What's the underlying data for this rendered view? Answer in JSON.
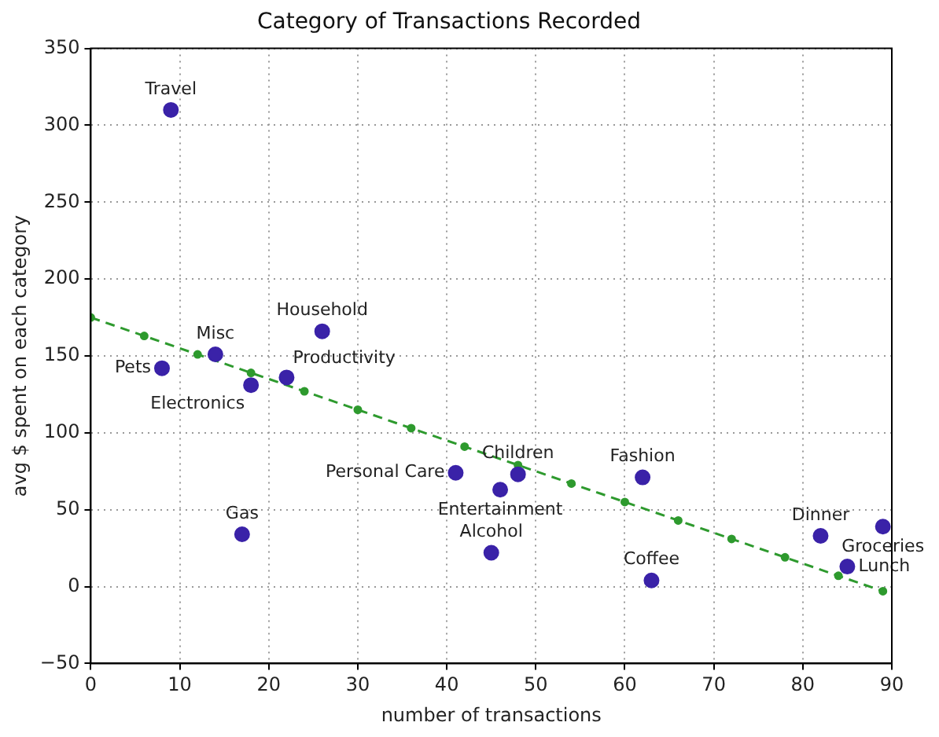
{
  "chart_data": {
    "type": "scatter",
    "title": "Category of Transactions Recorded",
    "xlabel": "number of transactions",
    "ylabel": "avg $ spent on each category",
    "xlim": [
      0,
      90
    ],
    "xticks": [
      0,
      10,
      20,
      30,
      40,
      50,
      60,
      70,
      80,
      90
    ],
    "ylim": [
      -50,
      350
    ],
    "yticks": [
      -50,
      0,
      50,
      100,
      150,
      200,
      250,
      300,
      350
    ],
    "grid": true,
    "marker": "circle",
    "series": [
      {
        "color": "#3a22a8",
        "x": [
          9,
          8,
          14,
          18,
          22,
          26,
          41,
          46,
          48,
          45,
          62,
          63,
          17,
          82,
          85,
          89
        ],
        "values": [
          310,
          142,
          151,
          131,
          136,
          166,
          74,
          63,
          73,
          22,
          71,
          4,
          34,
          33,
          13,
          39
        ]
      },
      {
        "type": "line",
        "color": "#2e9a2e",
        "line_style": "dashed",
        "marker": "circle",
        "x": [
          0,
          6,
          12,
          18,
          24,
          30,
          36,
          42,
          48,
          54,
          60,
          66,
          72,
          78,
          84,
          89
        ],
        "values": [
          175,
          163,
          151,
          139,
          127,
          115,
          103,
          91,
          79,
          67,
          55,
          43,
          31,
          19,
          7,
          -3
        ]
      }
    ],
    "annotations": [
      {
        "text": "Travel",
        "x": 9,
        "y": 310
      },
      {
        "text": "Pets",
        "x": 8,
        "y": 142
      },
      {
        "text": "Misc",
        "x": 14,
        "y": 151
      },
      {
        "text": "Electronics",
        "x": 18,
        "y": 131
      },
      {
        "text": "Productivity",
        "x": 22,
        "y": 136
      },
      {
        "text": "Household",
        "x": 26,
        "y": 166
      },
      {
        "text": "Personal Care",
        "x": 41,
        "y": 74
      },
      {
        "text": "Entertainment",
        "x": 46,
        "y": 63
      },
      {
        "text": "Children",
        "x": 48,
        "y": 73
      },
      {
        "text": "Alcohol",
        "x": 45,
        "y": 22
      },
      {
        "text": "Fashion",
        "x": 62,
        "y": 71
      },
      {
        "text": "Coffee",
        "x": 63,
        "y": 4
      },
      {
        "text": "Gas",
        "x": 17,
        "y": 34
      },
      {
        "text": "Dinner",
        "x": 82,
        "y": 33
      },
      {
        "text": "Lunch",
        "x": 85,
        "y": 13
      },
      {
        "text": "Groceries",
        "x": 89,
        "y": 39
      }
    ]
  }
}
